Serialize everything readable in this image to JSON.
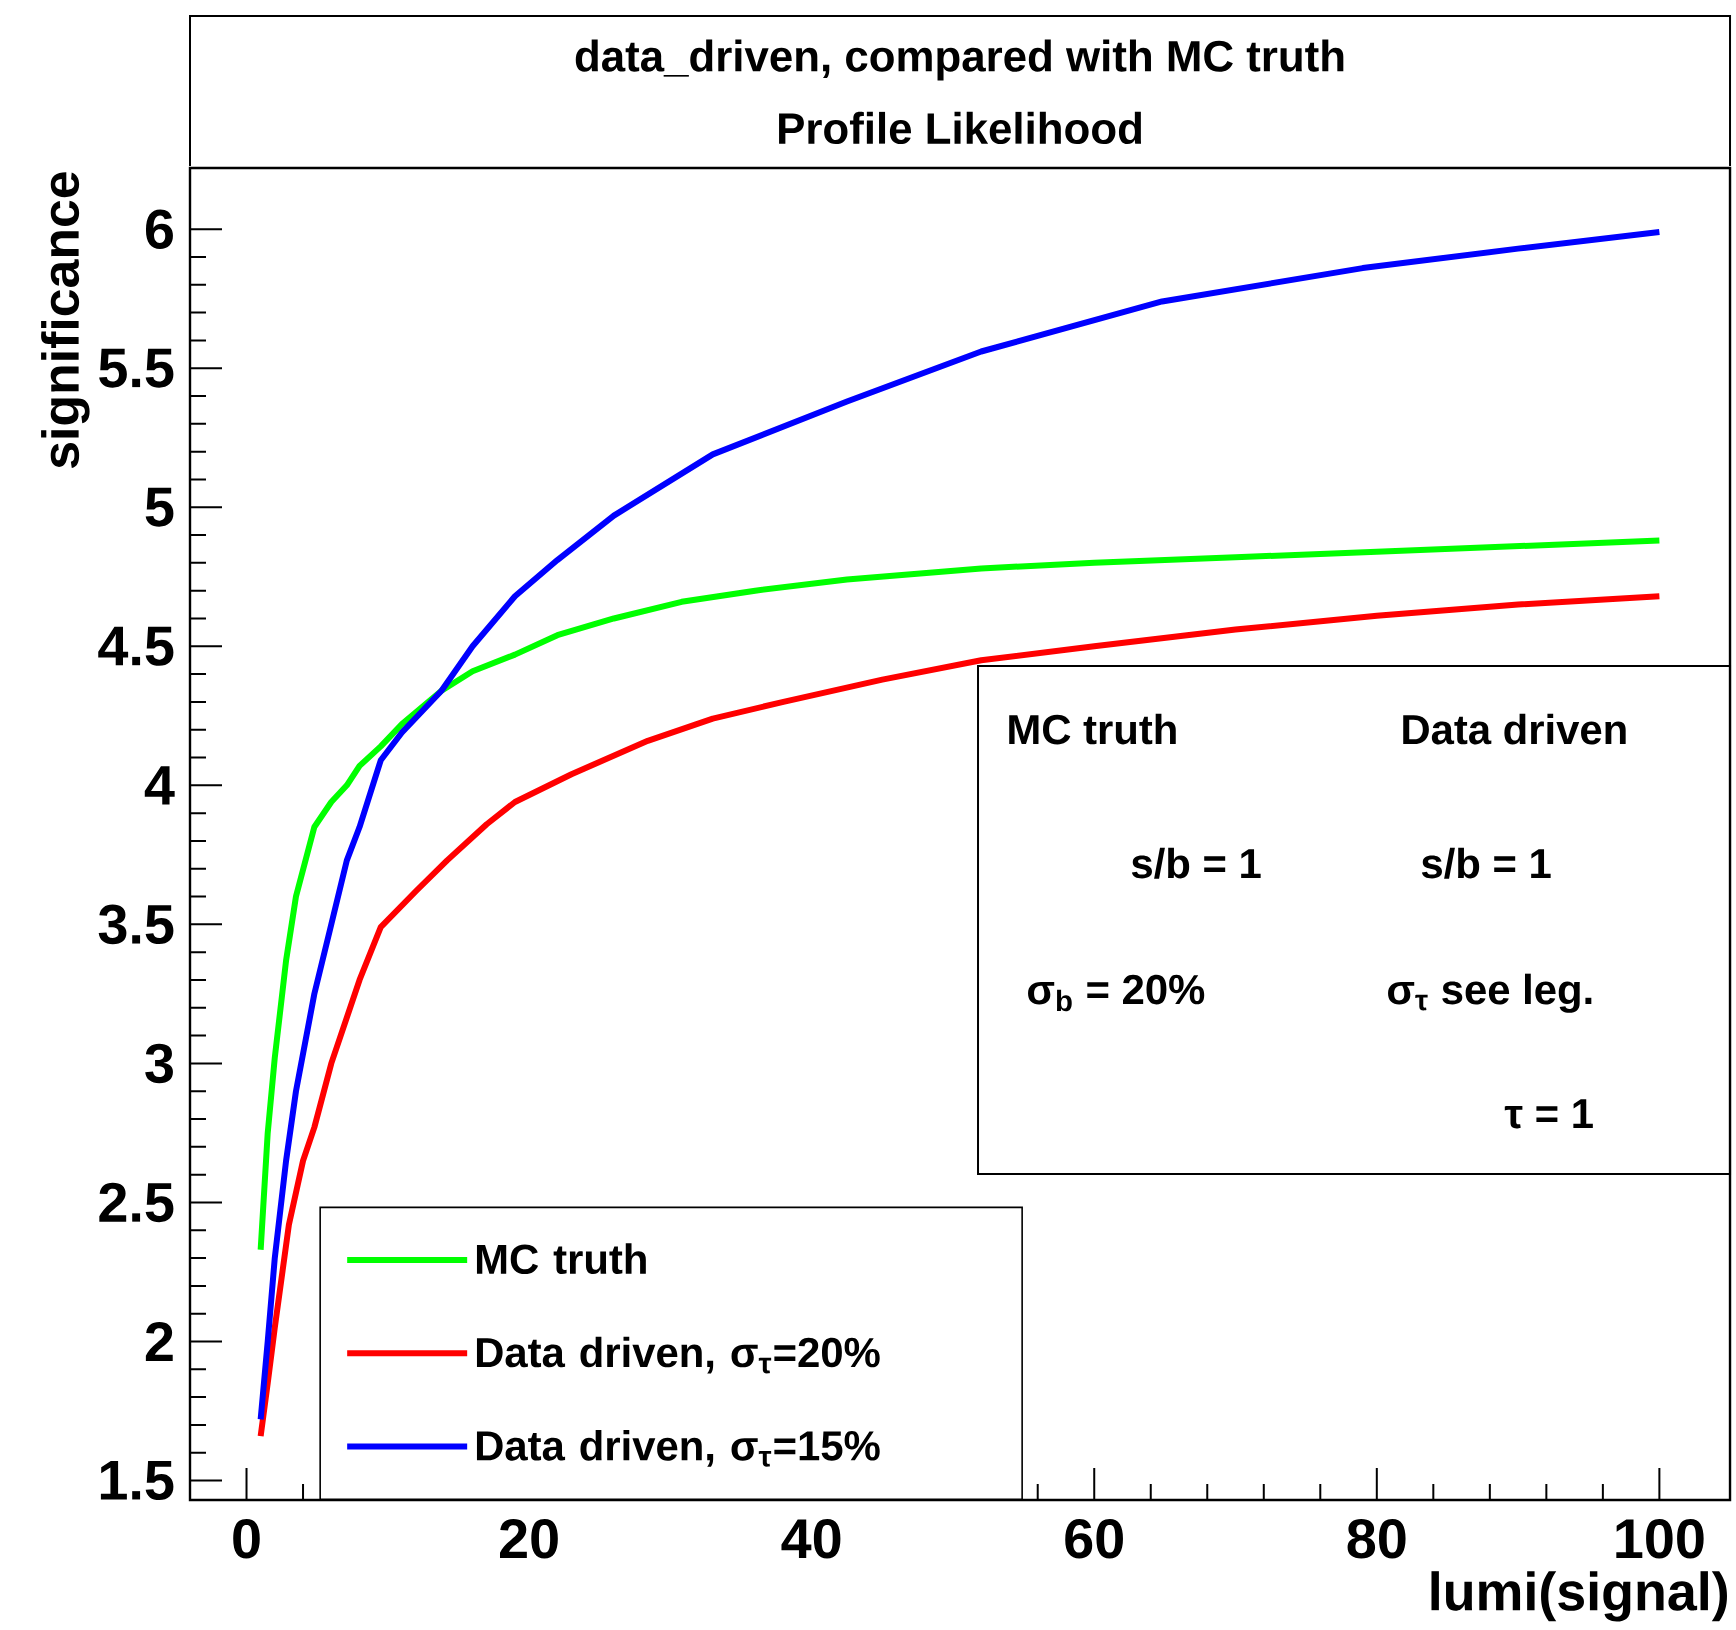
{
  "chart_data": {
    "type": "line",
    "title": "data_driven, compared with MC truth",
    "subtitle": "Profile Likelihood",
    "xlabel": "lumi(signal)",
    "ylabel": "significance",
    "xlim": [
      -4,
      105
    ],
    "ylim": [
      1.43,
      6.22
    ],
    "xticks": [
      0,
      20,
      40,
      60,
      80,
      100
    ],
    "yticks": [
      1.5,
      2,
      2.5,
      3,
      3.5,
      4,
      4.5,
      5,
      5.5,
      6
    ],
    "legend": "bottom left",
    "marker": "none",
    "line_style": "solid",
    "annotations": [
      "MC truth",
      "Data driven",
      "s/b = 1",
      "s/b = 1",
      "σ$_{b}$ = 20%",
      "σ$_{τ}$ see leg.",
      "τ = 1"
    ],
    "series": [
      {
        "name": "MC truth",
        "color": "#00ff00",
        "x": [
          1,
          1.5,
          2,
          2.8,
          3.5,
          4.8,
          6,
          7.1,
          8,
          9.5,
          11,
          13.8,
          16,
          19,
          22,
          26,
          30.8,
          36,
          42.5,
          52,
          60,
          70,
          80,
          90,
          100
        ],
        "values": [
          2.33,
          2.75,
          3.02,
          3.37,
          3.6,
          3.85,
          3.94,
          4.0,
          4.07,
          4.14,
          4.22,
          4.34,
          4.41,
          4.47,
          4.54,
          4.6,
          4.66,
          4.7,
          4.74,
          4.78,
          4.8,
          4.82,
          4.84,
          4.86,
          4.88
        ]
      },
      {
        "name": "Data driven, σ$_{τ}$=20%",
        "color": "#ff0000",
        "x": [
          1,
          1.5,
          2,
          3,
          4,
          4.8,
          6,
          8,
          9.5,
          12,
          14.2,
          17,
          19,
          23,
          28.4,
          33,
          38,
          45,
          52,
          60,
          70,
          80,
          90,
          100
        ],
        "values": [
          1.66,
          1.85,
          2.05,
          2.42,
          2.65,
          2.77,
          3.0,
          3.3,
          3.49,
          3.62,
          3.73,
          3.86,
          3.94,
          4.04,
          4.16,
          4.24,
          4.3,
          4.38,
          4.45,
          4.5,
          4.56,
          4.61,
          4.65,
          4.68
        ]
      },
      {
        "name": "Data driven, σ$_{τ}$=15%",
        "color": "#0000ff",
        "x": [
          1,
          1.5,
          2,
          2.8,
          3.5,
          4.8,
          6,
          7.1,
          8,
          9.5,
          11,
          13.8,
          16,
          19,
          22,
          26,
          33,
          42.5,
          52,
          64.8,
          79,
          90,
          100
        ],
        "values": [
          1.72,
          2.0,
          2.3,
          2.65,
          2.9,
          3.25,
          3.5,
          3.73,
          3.85,
          4.09,
          4.19,
          4.34,
          4.5,
          4.68,
          4.81,
          4.97,
          5.19,
          5.38,
          5.56,
          5.74,
          5.86,
          5.93,
          5.99
        ]
      }
    ]
  }
}
